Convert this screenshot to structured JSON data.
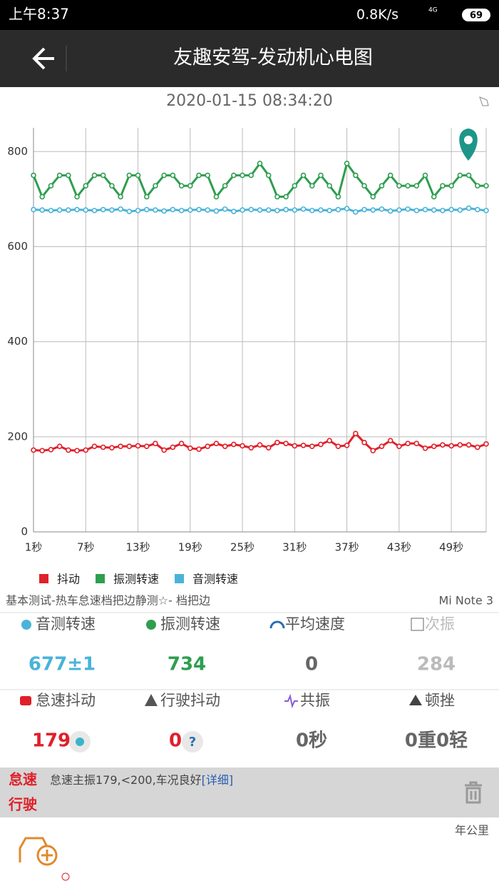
{
  "status_bar": {
    "time": "上午8:37",
    "network": "0.8K/s",
    "signal": "4G",
    "battery": "69"
  },
  "header": {
    "title": "友趣安驾-发动机心电图"
  },
  "timestamp": "2020-01-15 08:34:20",
  "chart_data": {
    "type": "line",
    "x": [
      1,
      2,
      3,
      4,
      5,
      6,
      7,
      8,
      9,
      10,
      11,
      12,
      13,
      14,
      15,
      16,
      17,
      18,
      19,
      20,
      21,
      22,
      23,
      24,
      25,
      26,
      27,
      28,
      29,
      30,
      31,
      32,
      33,
      34,
      35,
      36,
      37,
      38,
      39,
      40,
      41,
      42,
      43,
      44,
      45,
      46,
      47,
      48,
      49,
      50,
      51,
      52,
      53
    ],
    "series": [
      {
        "name": "抖动",
        "color": "#e0202a",
        "values": [
          172,
          171,
          173,
          180,
          172,
          171,
          172,
          180,
          178,
          177,
          180,
          180,
          181,
          180,
          186,
          172,
          178,
          186,
          176,
          174,
          180,
          186,
          180,
          184,
          181,
          177,
          183,
          177,
          188,
          186,
          181,
          182,
          180,
          184,
          192,
          180,
          182,
          207,
          188,
          171,
          180,
          192,
          180,
          186,
          186,
          176,
          180,
          183,
          181,
          183,
          183,
          178,
          185
        ]
      },
      {
        "name": "振测转速",
        "color": "#2e9e4f",
        "values": [
          750,
          705,
          728,
          750,
          750,
          705,
          728,
          750,
          750,
          728,
          705,
          750,
          750,
          705,
          728,
          750,
          750,
          728,
          728,
          750,
          750,
          705,
          728,
          750,
          750,
          750,
          775,
          750,
          705,
          705,
          728,
          750,
          728,
          750,
          728,
          705,
          775,
          750,
          728,
          705,
          728,
          750,
          728,
          728,
          728,
          750,
          705,
          728,
          728,
          750,
          750,
          728,
          728
        ]
      },
      {
        "name": "音测转速",
        "color": "#4ab3d8",
        "values": [
          678,
          677,
          676,
          677,
          677,
          678,
          677,
          676,
          678,
          677,
          679,
          674,
          676,
          678,
          677,
          675,
          678,
          676,
          677,
          678,
          677,
          675,
          679,
          674,
          677,
          678,
          677,
          677,
          676,
          678,
          677,
          679,
          676,
          677,
          676,
          678,
          680,
          673,
          678,
          677,
          679,
          675,
          677,
          679,
          676,
          678,
          677,
          676,
          678,
          677,
          681,
          678,
          676
        ]
      }
    ],
    "xlim": [
      1,
      53
    ],
    "xticks": [
      {
        "value": 1,
        "label": "1秒"
      },
      {
        "value": 7,
        "label": "7秒"
      },
      {
        "value": 13,
        "label": "13秒"
      },
      {
        "value": 19,
        "label": "19秒"
      },
      {
        "value": 25,
        "label": "25秒"
      },
      {
        "value": 31,
        "label": "31秒"
      },
      {
        "value": 37,
        "label": "37秒"
      },
      {
        "value": 43,
        "label": "43秒"
      },
      {
        "value": 49,
        "label": "49秒"
      }
    ],
    "ylim": [
      0,
      850
    ],
    "yticks": [
      0,
      200,
      400,
      600,
      800
    ],
    "grid": true,
    "legend": "bottom-left"
  },
  "test_info": {
    "mode": "基本测试-热车怠速档把边静测☆- 档把边",
    "device": "Mi Note 3"
  },
  "stats": [
    {
      "label": "音测转速",
      "value": "677±1"
    },
    {
      "label": "振测转速",
      "value": "734"
    },
    {
      "label": "平均速度",
      "value": "0"
    },
    {
      "label": "次振",
      "value": "284"
    },
    {
      "label": "怠速抖动",
      "value": "179"
    },
    {
      "label": "行驶抖动",
      "value": "0"
    },
    {
      "label": "共振",
      "value": "0秒"
    },
    {
      "label": "顿挫",
      "value": "0重0轻"
    }
  ],
  "status_panel": {
    "idle_label": "怠速",
    "driving_label": "行驶",
    "message": "怠速主振179,<200,车况良好",
    "link": "[详细]"
  },
  "mileage_unit": "年公里"
}
